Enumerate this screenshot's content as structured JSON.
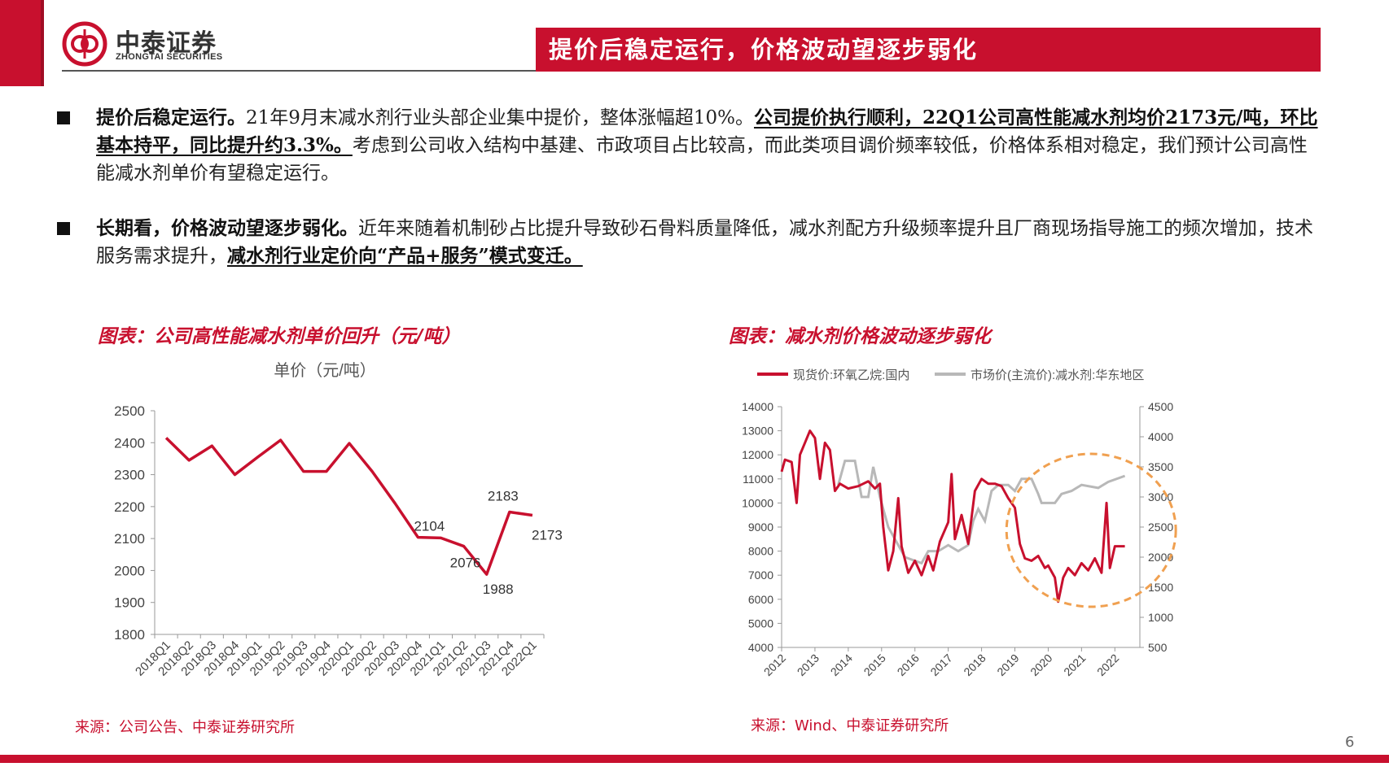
{
  "header": {
    "logo_cn": "中泰证券",
    "logo_en": "ZHONGTAI SECURITIES",
    "title": "提价后稳定运行，价格波动望逐步弱化"
  },
  "bullets": [
    {
      "lead": "提价后稳定运行。",
      "text1": "21年9月末减水剂行业头部企业集中提价，整体涨幅超10%。",
      "emph": "公司提价执行顺利，22Q1公司高性能减水剂均价2173元/吨，环比基本持平，同比提升约3.3%。",
      "text2": "考虑到公司收入结构中基建、市政项目占比较高，而此类项目调价频率较低，价格体系相对稳定，我们预计公司高性能减水剂单价有望稳定运行。"
    },
    {
      "lead": "长期看，价格波动望逐步弱化。",
      "text1": "近年来随着机制砂占比提升导致砂石骨料质量降低，减水剂配方升级频率提升且厂商现场指导施工的频次增加，技术服务需求提升，",
      "emph": "减水剂行业定价向“产品+服务”模式变迁。",
      "text2": ""
    }
  ],
  "figure_left": {
    "caption": "图表：公司高性能减水剂单价回升（元/吨）",
    "source": "来源：公司公告、中泰证券研究所"
  },
  "figure_right": {
    "caption": "图表：减水剂价格波动逐步弱化",
    "source": "来源：Wind、中泰证券研究所"
  },
  "page_number": "6",
  "chart_data": [
    {
      "type": "line",
      "title": "单价（元/吨）",
      "categories": [
        "2018Q1",
        "2018Q2",
        "2018Q3",
        "2018Q4",
        "2019Q1",
        "2019Q2",
        "2019Q3",
        "2019Q4",
        "2020Q1",
        "2020Q2",
        "2020Q3",
        "2020Q4",
        "2021Q1",
        "2021Q2",
        "2021Q3",
        "2021Q4",
        "2022Q1"
      ],
      "series": [
        {
          "values": [
            2415,
            2345,
            2390,
            2300,
            2355,
            2408,
            2310,
            2310,
            2398,
            2310,
            2210,
            2104,
            2102,
            2076,
            1988,
            2183,
            2173
          ],
          "color": "#c8102e"
        }
      ],
      "data_labels": [
        {
          "index": 11,
          "text": "2104"
        },
        {
          "index": 13,
          "text": "2076"
        },
        {
          "index": 14,
          "text": "1988"
        },
        {
          "index": 15,
          "text": "2183"
        },
        {
          "index": 16,
          "text": "2173"
        }
      ],
      "ylim": [
        1800,
        2500
      ],
      "yticks": [
        1800,
        1900,
        2000,
        2100,
        2200,
        2300,
        2400,
        2500
      ],
      "grid": false
    },
    {
      "type": "line",
      "legend": [
        "现货价:环氧乙烷:国内",
        "市场价(主流价):减水剂:华东地区"
      ],
      "legend_position": "top",
      "x_range": [
        2012,
        2022.75
      ],
      "xticks": [
        "2012",
        "2013",
        "2014",
        "2015",
        "2016",
        "2017",
        "2018",
        "2019",
        "2020",
        "2021",
        "2022"
      ],
      "y_left": {
        "ylim": [
          4000,
          14000
        ],
        "ticks": [
          4000,
          5000,
          6000,
          7000,
          8000,
          9000,
          10000,
          11000,
          12000,
          13000,
          14000
        ]
      },
      "y_right": {
        "ylim": [
          500,
          4500
        ],
        "ticks": [
          500,
          1000,
          1500,
          2000,
          2500,
          3000,
          3500,
          4000,
          4500
        ]
      },
      "series": [
        {
          "name": "现货价:环氧乙烷:国内",
          "axis": "left",
          "color": "#c8102e",
          "points": [
            [
              2012,
              11300
            ],
            [
              2012.1,
              11800
            ],
            [
              2012.3,
              11700
            ],
            [
              2012.45,
              10000
            ],
            [
              2012.55,
              12000
            ],
            [
              2012.7,
              12500
            ],
            [
              2012.85,
              13000
            ],
            [
              2013,
              12700
            ],
            [
              2013.15,
              11000
            ],
            [
              2013.3,
              12500
            ],
            [
              2013.45,
              12200
            ],
            [
              2013.6,
              10500
            ],
            [
              2013.75,
              10800
            ],
            [
              2014,
              10600
            ],
            [
              2014.3,
              10700
            ],
            [
              2014.6,
              10900
            ],
            [
              2014.8,
              10600
            ],
            [
              2014.95,
              10800
            ],
            [
              2015.05,
              9000
            ],
            [
              2015.2,
              7200
            ],
            [
              2015.35,
              8000
            ],
            [
              2015.5,
              10200
            ],
            [
              2015.6,
              8200
            ],
            [
              2015.8,
              7100
            ],
            [
              2016,
              7600
            ],
            [
              2016.2,
              7000
            ],
            [
              2016.4,
              7800
            ],
            [
              2016.55,
              7200
            ],
            [
              2016.75,
              8400
            ],
            [
              2017,
              9200
            ],
            [
              2017.1,
              11200
            ],
            [
              2017.2,
              8500
            ],
            [
              2017.4,
              9500
            ],
            [
              2017.6,
              8300
            ],
            [
              2017.8,
              10500
            ],
            [
              2018,
              11000
            ],
            [
              2018.2,
              10800
            ],
            [
              2018.4,
              10800
            ],
            [
              2018.6,
              10700
            ],
            [
              2018.8,
              10200
            ],
            [
              2019,
              9800
            ],
            [
              2019.15,
              8300
            ],
            [
              2019.3,
              7700
            ],
            [
              2019.5,
              7600
            ],
            [
              2019.7,
              7800
            ],
            [
              2019.9,
              7300
            ],
            [
              2020,
              7400
            ],
            [
              2020.2,
              6900
            ],
            [
              2020.3,
              5900
            ],
            [
              2020.45,
              6900
            ],
            [
              2020.6,
              7300
            ],
            [
              2020.8,
              7000
            ],
            [
              2021,
              7500
            ],
            [
              2021.2,
              7200
            ],
            [
              2021.4,
              7700
            ],
            [
              2021.6,
              7100
            ],
            [
              2021.75,
              10000
            ],
            [
              2021.85,
              7300
            ],
            [
              2022,
              8200
            ],
            [
              2022.3,
              8200
            ]
          ]
        },
        {
          "name": "市场价(主流价):减水剂:华东地区",
          "axis": "right",
          "color": "#b8b8b8",
          "points": [
            [
              2013.7,
              3200
            ],
            [
              2013.9,
              3600
            ],
            [
              2014.2,
              3600
            ],
            [
              2014.4,
              3000
            ],
            [
              2014.6,
              3000
            ],
            [
              2014.75,
              3500
            ],
            [
              2014.95,
              3000
            ],
            [
              2015.2,
              2500
            ],
            [
              2015.5,
              2200
            ],
            [
              2015.7,
              2000
            ],
            [
              2016.2,
              1900
            ],
            [
              2016.4,
              2100
            ],
            [
              2016.7,
              2100
            ],
            [
              2017,
              2200
            ],
            [
              2017.3,
              2100
            ],
            [
              2017.6,
              2200
            ],
            [
              2017.75,
              2600
            ],
            [
              2017.9,
              2800
            ],
            [
              2018.1,
              2600
            ],
            [
              2018.3,
              3100
            ],
            [
              2018.5,
              3200
            ],
            [
              2018.8,
              3200
            ],
            [
              2019,
              3100
            ],
            [
              2019.2,
              3300
            ],
            [
              2019.5,
              3300
            ],
            [
              2019.7,
              3050
            ],
            [
              2019.8,
              2900
            ],
            [
              2020.2,
              2900
            ],
            [
              2020.4,
              3050
            ],
            [
              2020.7,
              3100
            ],
            [
              2021,
              3200
            ],
            [
              2021.5,
              3150
            ],
            [
              2021.8,
              3250
            ],
            [
              2022.3,
              3350
            ]
          ]
        }
      ],
      "annotation": "dashed orange ellipse highlighting 2019-2022"
    }
  ]
}
